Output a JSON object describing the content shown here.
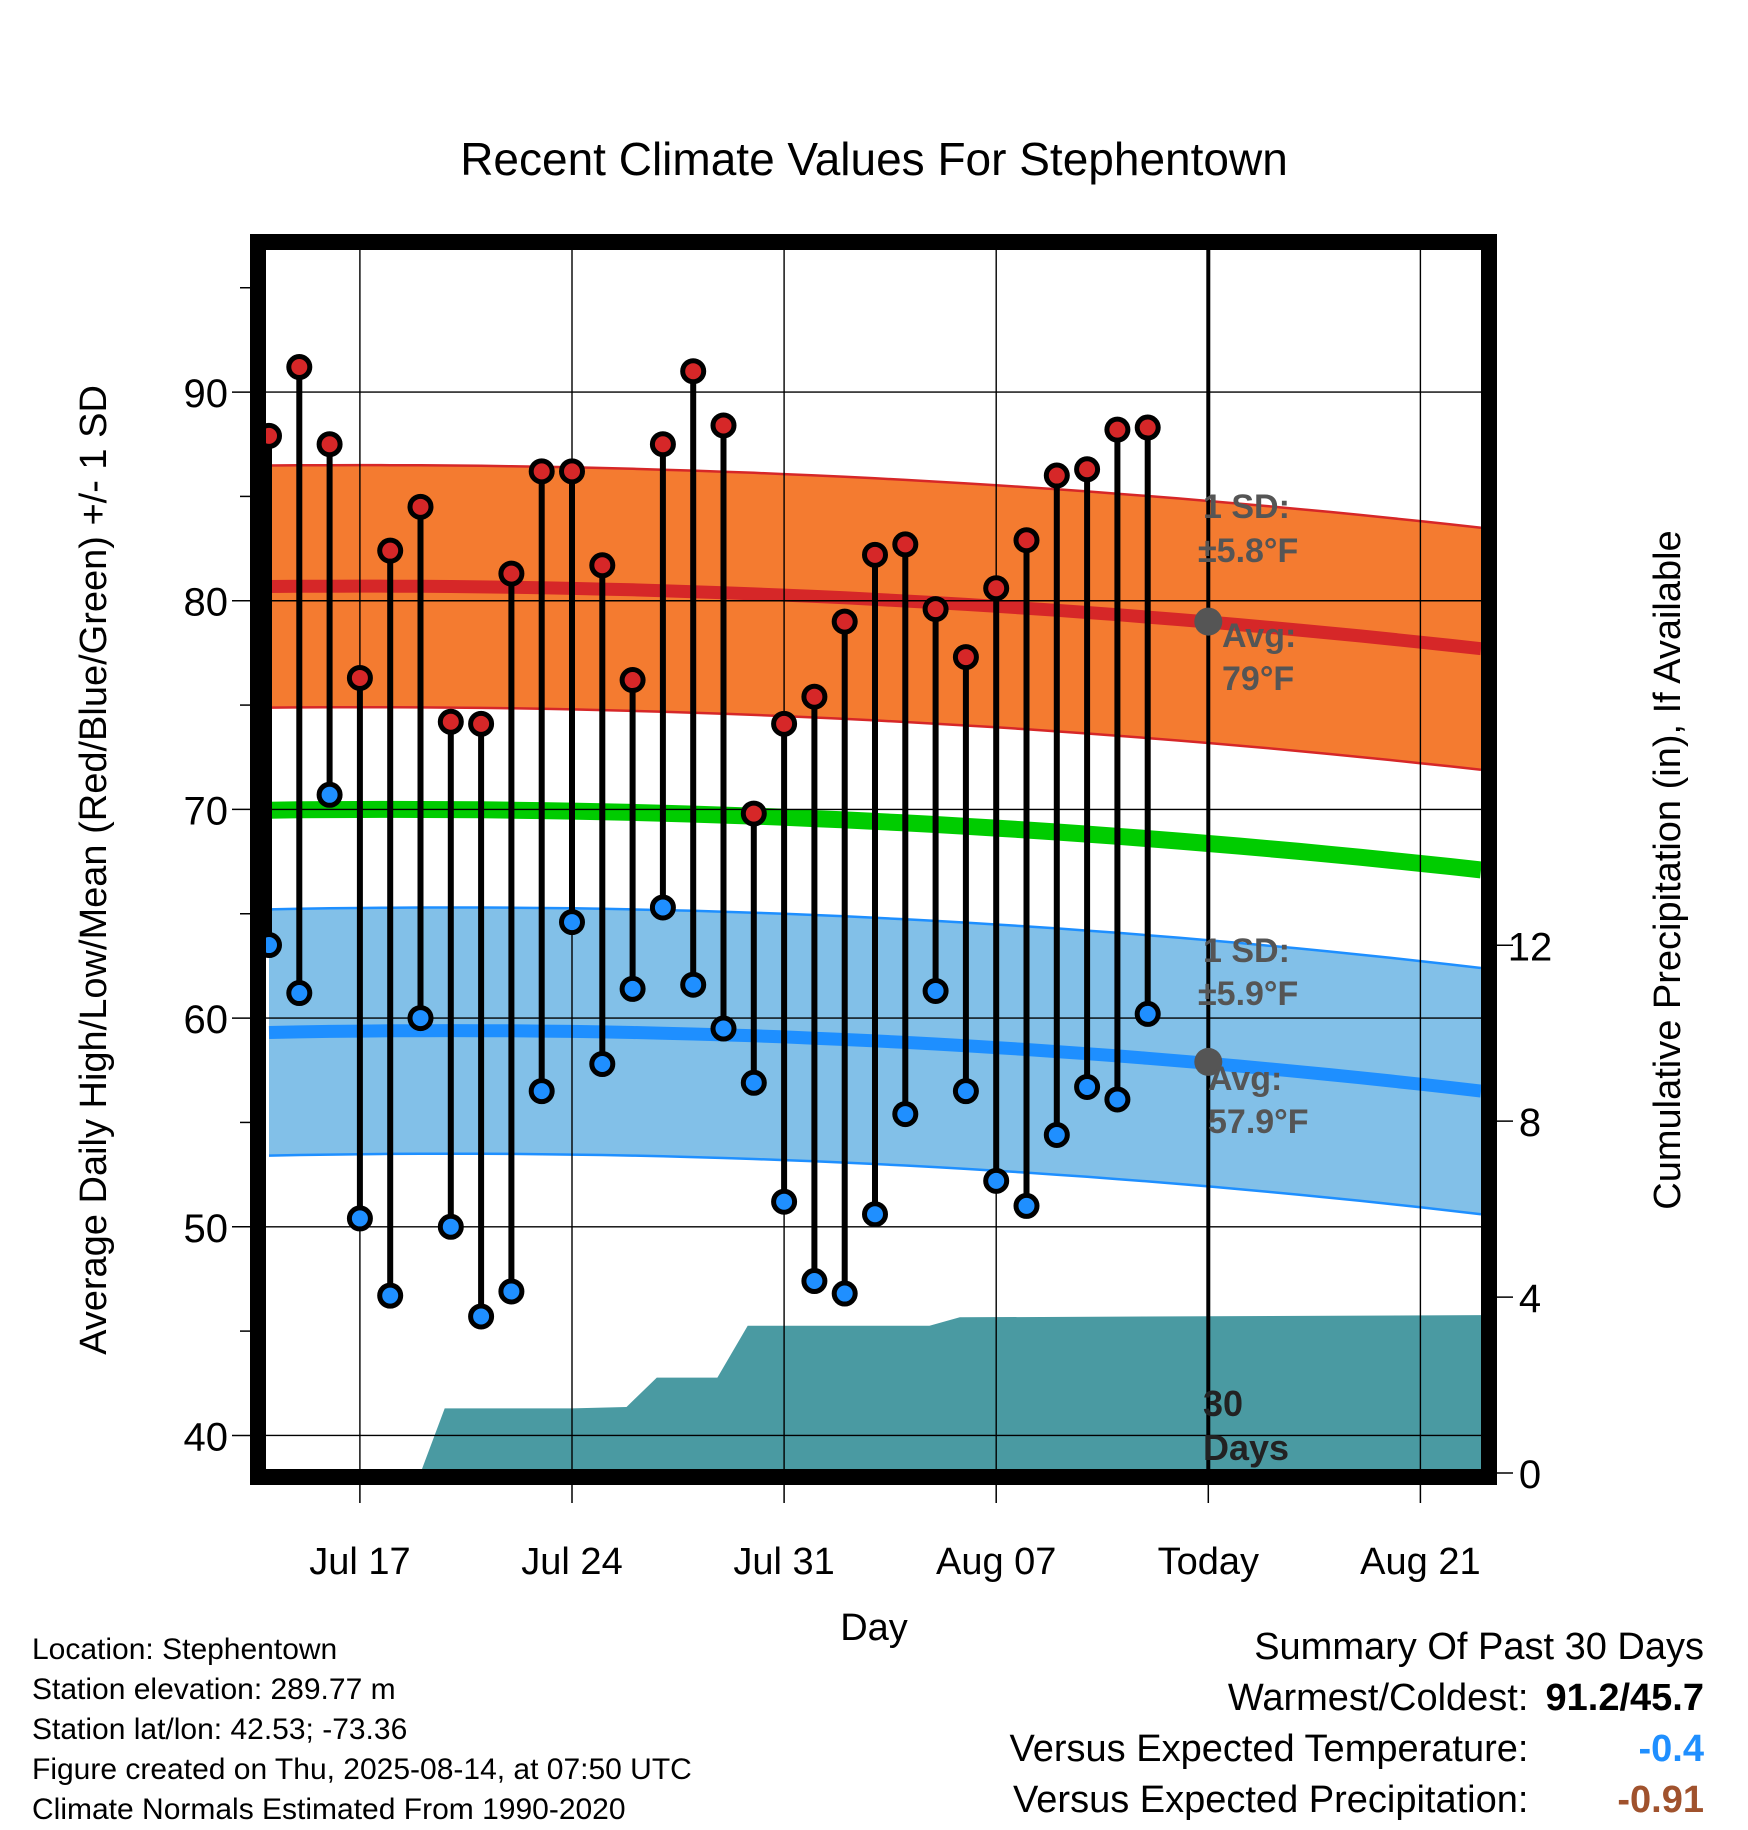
{
  "chart_data": {
    "type": "line",
    "title": "Recent Climate Values For Stephentown",
    "xlabel": "Day",
    "ylabel_left": "Average Daily High/Low/Mean (Red/Blue/Green) +/- 1 SD",
    "ylabel_right": "Cumulative Precipitation (in), If Available",
    "x_start": "Jul 14",
    "x_end": "Aug 23",
    "today_index": 31,
    "ylim_left": [
      38.2,
      97
    ],
    "ylim_right": [
      0,
      27.9
    ],
    "y_ticks_left": [
      40,
      50,
      60,
      70,
      80,
      90
    ],
    "y_ticks_right": [
      0,
      4,
      8,
      12
    ],
    "x_ticks": [
      {
        "index": 3,
        "label": "Jul 17"
      },
      {
        "index": 10,
        "label": "Jul 24"
      },
      {
        "index": 17,
        "label": "Jul 31"
      },
      {
        "index": 24,
        "label": "Aug 07"
      },
      {
        "index": 31,
        "label": "Today"
      },
      {
        "index": 38,
        "label": "Aug 21"
      }
    ],
    "grid": true,
    "daily_high": [
      87.9,
      91.2,
      87.5,
      76.3,
      82.4,
      84.5,
      74.2,
      74.1,
      81.3,
      86.2,
      86.2,
      81.7,
      76.2,
      87.5,
      91.0,
      88.4,
      69.8,
      74.1,
      75.4,
      79.0,
      82.2,
      82.7,
      79.6,
      77.3,
      80.6,
      82.9,
      86.0,
      86.3,
      88.2,
      88.3
    ],
    "daily_low": [
      63.5,
      61.2,
      70.7,
      50.4,
      46.7,
      60.0,
      50.0,
      45.7,
      46.9,
      56.5,
      64.6,
      57.8,
      61.4,
      65.3,
      61.6,
      59.5,
      56.9,
      51.2,
      47.4,
      46.8,
      50.6,
      55.4,
      61.3,
      56.5,
      52.2,
      51.0,
      54.4,
      56.7,
      56.1,
      60.2
    ],
    "normal_high": {
      "start": 80.6,
      "peak": 80.7,
      "peak_index": 3,
      "today": 79,
      "end": 77.7
    },
    "normal_low": {
      "start": 59.1,
      "peak": 59.4,
      "peak_index": 6,
      "today": 57.9,
      "end": 56.5
    },
    "normal_mean": {
      "start": 69.9,
      "peak": 70.0,
      "peak_index": 4,
      "end": 67.1
    },
    "sd_high": 5.8,
    "sd_low": 5.9,
    "precip_steps": [
      {
        "index": 0,
        "value": 0
      },
      {
        "index": 5,
        "value": 0
      },
      {
        "index": 5.8,
        "value": 1.47
      },
      {
        "index": 10,
        "value": 1.47
      },
      {
        "index": 11.8,
        "value": 1.5
      },
      {
        "index": 12.8,
        "value": 2.17
      },
      {
        "index": 14.8,
        "value": 2.17
      },
      {
        "index": 15.8,
        "value": 3.35
      },
      {
        "index": 21.8,
        "value": 3.35
      },
      {
        "index": 22.8,
        "value": 3.54
      },
      {
        "index": 40,
        "value": 3.59
      }
    ],
    "annotations": {
      "sd_high_label": "1 SD:",
      "sd_high_value": "±5.8°F",
      "avg_high_label": "Avg:",
      "avg_high_value": "79°F",
      "sd_low_label": "1 SD:",
      "sd_low_value": "±5.9°F",
      "avg_low_label": "Avg:",
      "avg_low_value": "57.9°F",
      "days_line1": "30",
      "days_line2": "Days"
    },
    "colors": {
      "high_dot": "#d62728",
      "low_dot": "#1f8fff",
      "high_band": "#f47b30",
      "high_edge": "#d62728",
      "low_band": "#82c0e8",
      "low_edge": "#1e8fff",
      "mean_line": "#00cc00",
      "precip": "#4a9aa2",
      "annotation": "#555555"
    }
  },
  "footer": {
    "location": "Location: Stephentown",
    "elevation": "Station elevation: 289.77 m",
    "latlon": "Station lat/lon: 42.53; -73.36",
    "created": "Figure created on Thu, 2025-08-14, at 07:50 UTC",
    "normals": "Climate Normals Estimated From 1990-2020"
  },
  "summary": {
    "title": "Summary Of Past 30 Days",
    "warmest_label": "Warmest/Coldest:",
    "warmest_value": "91.2/45.7",
    "temp_label": "Versus Expected Temperature:",
    "temp_value": "-0.4",
    "temp_color": "#1f8fff",
    "precip_label": "Versus Expected Precipitation:",
    "precip_value": "-0.91",
    "precip_color": "#a0522d"
  }
}
